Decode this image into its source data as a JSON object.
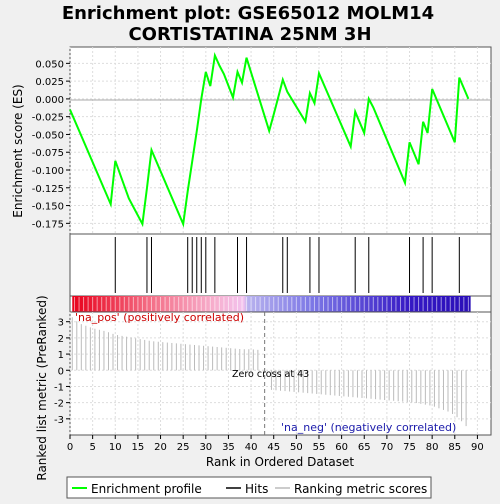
{
  "title_line1": "Enrichment plot: GSE65012 MOLM14",
  "title_line2": "CORTISTATINA 25NM 3H",
  "ylabel_es": "Enrichment score (ES)",
  "ylabel_rank": "Ranked list metric (PreRanked)",
  "xlabel": "Rank in Ordered Dataset",
  "pos_label": "'na_pos' (positively correlated)",
  "neg_label": "'na_neg' (negatively correlated)",
  "zero_cross_label": "Zero cross at 43",
  "legend": [
    {
      "label": "Enrichment profile",
      "color": "#00ff00"
    },
    {
      "label": "Hits",
      "color": "#000000"
    },
    {
      "label": "Ranking metric scores",
      "color": "#bbbbbb"
    }
  ],
  "colors": {
    "es_line": "#00ff00",
    "hits": "#000000",
    "metric": "#bbbbbb",
    "zero_line": "#777777",
    "pos_text": "#cc0000",
    "neg_text": "#1a1aaa"
  },
  "chart_data": {
    "type": "line",
    "xlim": [
      0,
      93
    ],
    "es_ylim": [
      -0.19,
      0.073
    ],
    "es_yticks": [
      0.05,
      0.025,
      0.0,
      -0.025,
      -0.05,
      -0.075,
      -0.1,
      -0.125,
      -0.15,
      -0.175
    ],
    "es_ytick_labels": [
      "0.050",
      "0.025",
      "0.000",
      "-0.025",
      "-0.050",
      "-0.075",
      "-0.100",
      "-0.125",
      "-0.150",
      "-0.175"
    ],
    "rank_ylim": [
      -4,
      3.6
    ],
    "rank_yticks": [
      3,
      2,
      1,
      0,
      -1,
      -2,
      -3
    ],
    "rank_ytick_labels": [
      "3",
      "2",
      "1",
      "0",
      "-1",
      "-2",
      "-3"
    ],
    "xticks": [
      0,
      5,
      10,
      15,
      20,
      25,
      30,
      35,
      40,
      45,
      50,
      55,
      60,
      65,
      70,
      75,
      80,
      85,
      90
    ],
    "xtick_labels": [
      "0",
      "5",
      "10",
      "15",
      "20",
      "25",
      "30",
      "35",
      "40",
      "45",
      "50",
      "55",
      "60",
      "65",
      "70",
      "75",
      "80",
      "85",
      "90"
    ],
    "zero_cross": 43,
    "enrichment_profile": {
      "x": [
        0,
        9,
        10,
        13,
        16,
        17,
        18,
        25,
        26,
        27,
        28,
        29,
        30,
        31,
        32,
        33,
        34,
        36,
        37,
        38,
        39,
        44,
        45,
        46,
        47,
        48,
        52,
        53,
        54,
        55,
        62,
        63,
        65,
        66,
        67,
        74,
        75,
        77,
        78,
        79,
        80,
        85,
        86,
        88
      ],
      "y": [
        -0.015,
        -0.148,
        -0.087,
        -0.14,
        -0.176,
        -0.125,
        -0.072,
        -0.176,
        -0.13,
        -0.088,
        -0.045,
        0.0,
        0.038,
        0.018,
        0.061,
        0.047,
        0.035,
        0.002,
        0.038,
        0.023,
        0.058,
        -0.045,
        -0.022,
        0.002,
        0.027,
        0.01,
        -0.032,
        0.008,
        -0.006,
        0.036,
        -0.067,
        -0.018,
        -0.048,
        0.0,
        -0.012,
        -0.118,
        -0.061,
        -0.092,
        -0.032,
        -0.048,
        0.014,
        -0.061,
        0.03,
        0.0
      ]
    },
    "hits": [
      10,
      17,
      18,
      26,
      27,
      28,
      29,
      30,
      32,
      37,
      39,
      47,
      48,
      53,
      55,
      63,
      66,
      75,
      78,
      80,
      86
    ],
    "ranking_metric": {
      "x": [
        0,
        2,
        5,
        8,
        10,
        12,
        14,
        16,
        18,
        20,
        22,
        24,
        26,
        28,
        30,
        32,
        34,
        36,
        38,
        40,
        42,
        43,
        44,
        48,
        52,
        56,
        60,
        64,
        68,
        72,
        76,
        78,
        80,
        82,
        84,
        86,
        87,
        88
      ],
      "y": [
        3.4,
        2.9,
        2.6,
        2.4,
        2.2,
        2.1,
        2.0,
        1.9,
        1.8,
        1.75,
        1.7,
        1.65,
        1.6,
        1.55,
        1.5,
        1.45,
        1.4,
        1.35,
        1.3,
        1.3,
        1.25,
        0.0,
        -1.2,
        -1.3,
        -1.4,
        -1.5,
        -1.6,
        -1.7,
        -1.8,
        -1.9,
        -2.0,
        -2.1,
        -2.2,
        -2.4,
        -2.6,
        -3.0,
        -3.3,
        -3.6
      ]
    }
  }
}
